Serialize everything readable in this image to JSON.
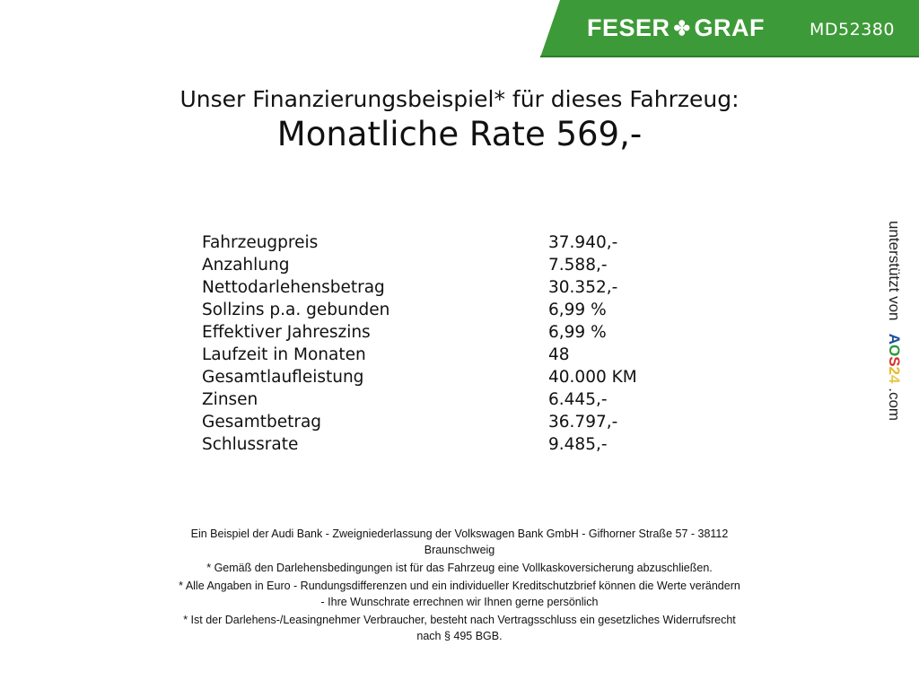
{
  "header": {
    "brand_left": "FESER",
    "brand_right": "GRAF",
    "brand_icon": "clover-icon",
    "vehicle_code": "MD52380",
    "brand_color": "#3d9a38"
  },
  "title": "Unser Finanzierungsbeispiel* für dieses Fahrzeug:",
  "monthly_rate": "Monatliche Rate 569,-",
  "finance_rows": [
    {
      "label": "Fahrzeugpreis",
      "value": "37.940,-"
    },
    {
      "label": "Anzahlung",
      "value": "7.588,-"
    },
    {
      "label": "Nettodarlehensbetrag",
      "value": "30.352,-"
    },
    {
      "label": "Sollzins p.a. gebunden",
      "value": "6,99 %"
    },
    {
      "label": "Effektiver Jahreszins",
      "value": "6,99 %"
    },
    {
      "label": "Laufzeit in Monaten",
      "value": "48"
    },
    {
      "label": "Gesamtlaufleistung",
      "value": "40.000 KM"
    },
    {
      "label": "Zinsen",
      "value": "6.445,-"
    },
    {
      "label": "Gesamtbetrag",
      "value": "36.797,-"
    },
    {
      "label": "Schlussrate",
      "value": "9.485,-"
    }
  ],
  "side": {
    "supported_by": "unterstützt von",
    "logo": "AOS24",
    "domain": ".com"
  },
  "footer": {
    "line1": "Ein Beispiel der Audi Bank - Zweigniederlassung der Volkswagen Bank GmbH - Gifhorner Straße 57 - 38112",
    "line1b": "Braunschweig",
    "line2": "* Gemäß den Darlehensbedingungen ist für das Fahrzeug eine Vollkaskoversicherung abzuschließen.",
    "line3": "* Alle Angaben in Euro - Rundungsdifferenzen und ein individueller Kreditschutzbrief können die Werte verändern",
    "line3b": "- Ihre Wunschrate errechnen wir Ihnen gerne persönlich",
    "line4": "* Ist der Darlehens-/Leasingnehmer Verbraucher, besteht nach Vertragsschluss ein gesetzliches Widerrufsrecht",
    "line4b": "nach § 495 BGB."
  }
}
